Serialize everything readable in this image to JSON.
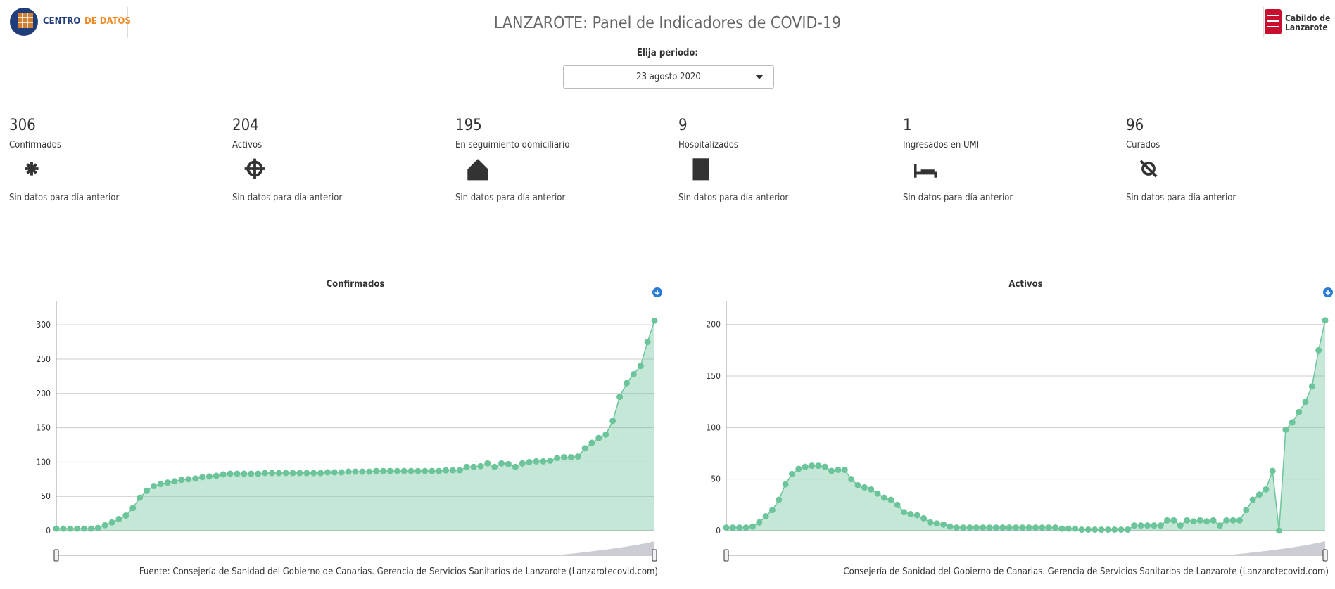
{
  "header": {
    "logo_text_a": "CENTRO",
    "logo_text_b": "DE DATOS",
    "title": "LANZAROTE: Panel de Indicadores de COVID-19",
    "right_logo_a": "Cabildo de",
    "right_logo_b": "Lanzarote"
  },
  "period": {
    "label": "Elija periodo:",
    "selected": "23 agosto 2020"
  },
  "indicators": [
    {
      "value": "306",
      "label": "Confirmados",
      "note": "Sin datos para día anterior"
    },
    {
      "value": "204",
      "label": "Activos",
      "note": "Sin datos para día anterior"
    },
    {
      "value": "195",
      "label": "En seguimiento domiciliario",
      "note": "Sin datos para día anterior"
    },
    {
      "value": "9",
      "label": "Hospitalizados",
      "note": "Sin datos para día anterior"
    },
    {
      "value": "1",
      "label": "Ingresados en UMI",
      "note": "Sin datos para día anterior"
    },
    {
      "value": "96",
      "label": "Curados",
      "note": "Sin datos para día anterior"
    }
  ],
  "chart_data": [
    {
      "type": "area",
      "title": "Confirmados",
      "source": "Fuente: Consejería de Sanidad del Gobierno de Canarias. Gerencia de Servicios Sanitarios de Lanzarote (Lanzarotecovid.com)",
      "color": "#6cc49b",
      "ylim": [
        0,
        335
      ],
      "yticks": [
        0,
        50,
        100,
        150,
        200,
        250,
        300
      ],
      "grid": true,
      "values": [
        3,
        3,
        3,
        3,
        3,
        3,
        4,
        8,
        12,
        17,
        22,
        33,
        48,
        58,
        65,
        68,
        70,
        72,
        74,
        75,
        76,
        78,
        79,
        80,
        82,
        83,
        83,
        83,
        83,
        83,
        84,
        84,
        84,
        84,
        84,
        84,
        84,
        84,
        84,
        85,
        85,
        85,
        86,
        86,
        86,
        86,
        87,
        87,
        87,
        87,
        87,
        87,
        87,
        87,
        87,
        87,
        88,
        88,
        88,
        93,
        93,
        94,
        98,
        93,
        98,
        97,
        93,
        98,
        100,
        101,
        101,
        102,
        106,
        107,
        107,
        108,
        120,
        128,
        135,
        140,
        160,
        195,
        215,
        228,
        240,
        275,
        306
      ]
    },
    {
      "type": "area",
      "title": "Activos",
      "source": "Consejería de Sanidad del Gobierno de Canarias. Gerencia de Servicios Sanitarios de Lanzarote (Lanzarotecovid.com)",
      "color": "#6cc49b",
      "ylim": [
        0,
        223
      ],
      "yticks": [
        0,
        50,
        100,
        150,
        200
      ],
      "grid": true,
      "values": [
        3,
        3,
        3,
        3,
        4,
        8,
        14,
        20,
        30,
        45,
        55,
        60,
        62,
        63,
        63,
        62,
        58,
        59,
        59,
        50,
        44,
        42,
        40,
        36,
        32,
        30,
        25,
        18,
        16,
        15,
        12,
        8,
        7,
        6,
        4,
        3,
        3,
        3,
        3,
        3,
        3,
        3,
        3,
        3,
        3,
        3,
        3,
        3,
        3,
        3,
        3,
        2,
        2,
        2,
        1,
        1,
        1,
        1,
        1,
        1,
        1,
        1,
        5,
        5,
        5,
        5,
        5,
        10,
        10,
        5,
        10,
        9,
        10,
        9,
        10,
        5,
        10,
        10,
        10,
        20,
        30,
        35,
        40,
        58,
        0,
        98,
        105,
        115,
        125,
        140,
        175,
        204
      ]
    }
  ]
}
